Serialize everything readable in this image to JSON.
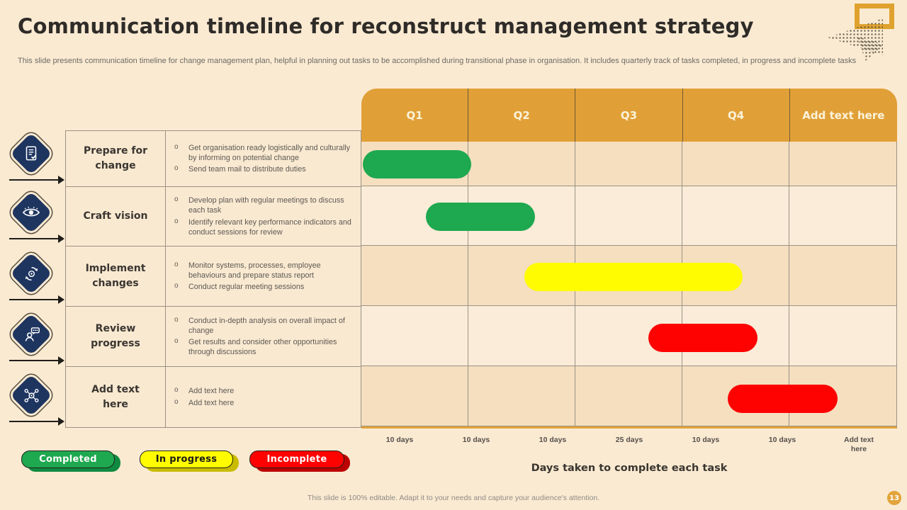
{
  "slide": {
    "title": "Communication timeline for reconstruct management strategy",
    "subtitle": "This slide presents communication timeline for change management plan, helpful in planning out tasks to be accomplished during transitional phase in organisation. It includes quarterly track of tasks completed, in progress and incomplete tasks",
    "footer": "This slide is 100% editable. Adapt it to your needs and capture your audience's attention.",
    "page_number": "13"
  },
  "colors": {
    "background": "#FAEAD2",
    "header_orange": "#E1A037",
    "navy_diamond": "#1E3560",
    "completed": "#1EA84F",
    "in_progress": "#FFFB00",
    "incomplete": "#FE0202"
  },
  "colors_dark": {
    "completed": "#0F8A40",
    "in_progress": "#C9BC00",
    "incomplete": "#BC0000"
  },
  "legend": {
    "items": [
      {
        "label": "Completed",
        "status": "completed",
        "text_color": "#FFFFFF"
      },
      {
        "label": "In progress",
        "status": "in_progress",
        "text_color": "#1A1A1A"
      },
      {
        "label": "Incomplete",
        "status": "incomplete",
        "text_color": "#FFFFFF"
      }
    ]
  },
  "chart_data": {
    "type": "gantt",
    "title": "Communication timeline for reconstruct management strategy",
    "columns": [
      "Q1",
      "Q2",
      "Q3",
      "Q4",
      "Add text here"
    ],
    "axis_label": "Days taken to complete each task",
    "duration_labels": [
      "10 days",
      "10 days",
      "10 days",
      "25 days",
      "10 days",
      "10 days",
      "Add text here"
    ],
    "legend_position": "bottom-left",
    "grid": true,
    "tasks": [
      {
        "name": "Prepare for change",
        "status": "completed",
        "bullets": [
          "Get organisation ready logistically and culturally by informing on potential change",
          "Send team mail to distribute duties"
        ],
        "span": {
          "start_col": 0.0,
          "end_col": 1.02
        },
        "bar": {
          "left_pct": 0.3,
          "width_pct": 20.2
        }
      },
      {
        "name": "Craft vision",
        "status": "completed",
        "bullets": [
          "Develop plan with regular meetings to discuss each task",
          "Identify relevant key performance indicators and conduct sessions for review"
        ],
        "span": {
          "start_col": 0.6,
          "end_col": 1.62
        },
        "bar": {
          "left_pct": 12.0,
          "width_pct": 20.4
        }
      },
      {
        "name": "Implement changes",
        "status": "in_progress",
        "bullets": [
          "Monitor systems, processes, employee behaviours and prepare status report",
          "Conduct regular meeting sessions"
        ],
        "span": {
          "start_col": 1.52,
          "end_col": 3.57
        },
        "bar": {
          "left_pct": 30.4,
          "width_pct": 40.9
        }
      },
      {
        "name": "Review progress",
        "status": "incomplete",
        "bullets": [
          "Conduct in-depth analysis on overall impact of change",
          "Get results and consider other opportunities through discussions"
        ],
        "span": {
          "start_col": 2.68,
          "end_col": 3.71
        },
        "bar": {
          "left_pct": 53.6,
          "width_pct": 20.5
        }
      },
      {
        "name": "Add text here",
        "status": "incomplete",
        "bullets": [
          "Add text here",
          "Add text here"
        ],
        "span": {
          "start_col": 3.42,
          "end_col": 4.45
        },
        "bar": {
          "left_pct": 68.5,
          "width_pct": 20.5
        }
      }
    ]
  },
  "icons": [
    "checklist-icon",
    "eye-icon",
    "process-arrows-icon",
    "discussion-icon",
    "team-network-icon"
  ]
}
